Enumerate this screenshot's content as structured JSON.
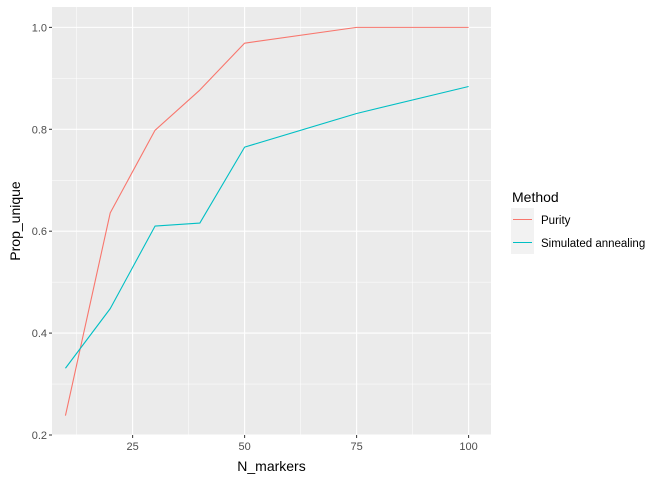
{
  "chart_data": {
    "type": "line",
    "title": "",
    "xlabel": "N_markers",
    "ylabel": "Prop_unique",
    "xlim": [
      7,
      105
    ],
    "ylim": [
      0.2,
      1.04
    ],
    "x_ticks": [
      25,
      50,
      75,
      100
    ],
    "x_tick_labels": [
      "25",
      "50",
      "75",
      "100"
    ],
    "y_ticks": [
      0.2,
      0.4,
      0.6,
      0.8,
      1.0
    ],
    "y_tick_labels": [
      "0.2",
      "0.4",
      "0.6",
      "0.8",
      "1.0"
    ],
    "grid": true,
    "legend": {
      "title": "Method",
      "position": "right"
    },
    "series": [
      {
        "name": "Purity",
        "color": "#F8766D",
        "x": [
          10,
          20,
          30,
          40,
          50,
          75,
          100
        ],
        "y": [
          0.238,
          0.636,
          0.798,
          0.877,
          0.969,
          1.0,
          1.0
        ]
      },
      {
        "name": "Simulated annealing",
        "color": "#00BFC4",
        "x": [
          10,
          20,
          30,
          40,
          50,
          75,
          100
        ],
        "y": [
          0.331,
          0.448,
          0.61,
          0.616,
          0.765,
          0.831,
          0.884
        ]
      }
    ]
  }
}
